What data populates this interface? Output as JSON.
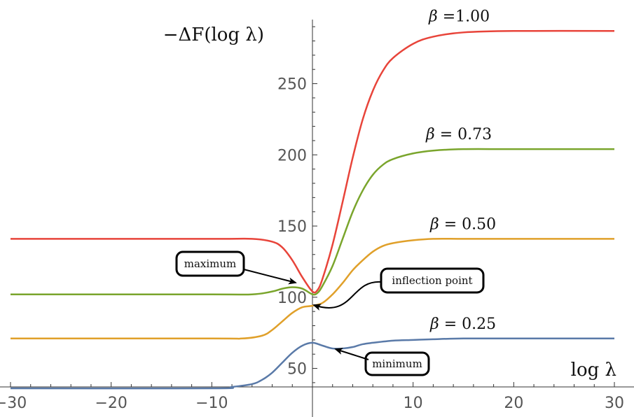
{
  "chart_data": {
    "type": "line",
    "title": "",
    "xlabel": "log λ",
    "ylabel": "−ΔF(log λ)",
    "xlim": [
      -30,
      30
    ],
    "ylim": [
      37,
      295
    ],
    "x_ticks": [
      -30,
      -20,
      -10,
      10,
      20,
      30
    ],
    "x_tick_labels": [
      "−30",
      "−20",
      "−10",
      "10",
      "20",
      "30"
    ],
    "y_ticks": [
      50,
      100,
      150,
      200,
      250
    ],
    "y_tick_labels": [
      "50",
      "100",
      "150",
      "200",
      "250"
    ],
    "grid": false,
    "legend": "none",
    "series": [
      {
        "label_symbol": "β",
        "label_value": "=1.00",
        "color": "#e8443a",
        "x": [
          -30,
          -10,
          -6,
          -4,
          -3,
          -2,
          -1,
          0,
          0.5,
          1,
          2,
          3,
          4,
          5,
          6,
          7,
          8,
          10,
          12,
          15,
          20,
          30
        ],
        "values": [
          141,
          141,
          141,
          139,
          135,
          126,
          114,
          104,
          105,
          113,
          137,
          167,
          198,
          225,
          245,
          259,
          268,
          278,
          283,
          286,
          287,
          287
        ]
      },
      {
        "label_symbol": "β",
        "label_value": "= 0.73",
        "color": "#7aa52c",
        "x": [
          -30,
          -10,
          -6,
          -4,
          -3,
          -2,
          -1,
          0,
          0.5,
          1,
          2,
          3,
          4,
          5,
          6,
          7,
          8,
          10,
          12,
          15,
          20,
          30
        ],
        "values": [
          102,
          102,
          102,
          104,
          106,
          107,
          106,
          102,
          103,
          108,
          122,
          141,
          160,
          175,
          186,
          193,
          197,
          201,
          203,
          204,
          204,
          204
        ]
      },
      {
        "label_symbol": "β",
        "label_value": "= 0.50",
        "color": "#e0a02a",
        "x": [
          -30,
          -10,
          -7,
          -5,
          -4,
          -3,
          -2,
          -1,
          0,
          1,
          2,
          3,
          4,
          5,
          6,
          7,
          8,
          10,
          12,
          15,
          20,
          30
        ],
        "values": [
          71,
          71,
          71,
          73,
          77,
          83,
          89,
          93,
          94,
          96,
          102,
          110,
          119,
          126,
          132,
          136,
          138,
          140,
          141,
          141,
          141,
          141
        ]
      },
      {
        "label_symbol": "β",
        "label_value": "= 0.25",
        "color": "#5a7aa8",
        "x": [
          -30,
          -10,
          -8,
          -6,
          -5,
          -4,
          -3,
          -2,
          -1,
          0,
          1,
          2,
          3,
          4,
          5,
          6,
          8,
          10,
          12,
          15,
          20,
          30
        ],
        "values": [
          36,
          36,
          37,
          39,
          42,
          47,
          54,
          61,
          66,
          68,
          66,
          64,
          64,
          65,
          67,
          68,
          69.5,
          70,
          70.5,
          71,
          71,
          71
        ]
      }
    ],
    "annotations": [
      {
        "text": "maximum"
      },
      {
        "text": "inflection point"
      },
      {
        "text": "minimum"
      }
    ]
  }
}
